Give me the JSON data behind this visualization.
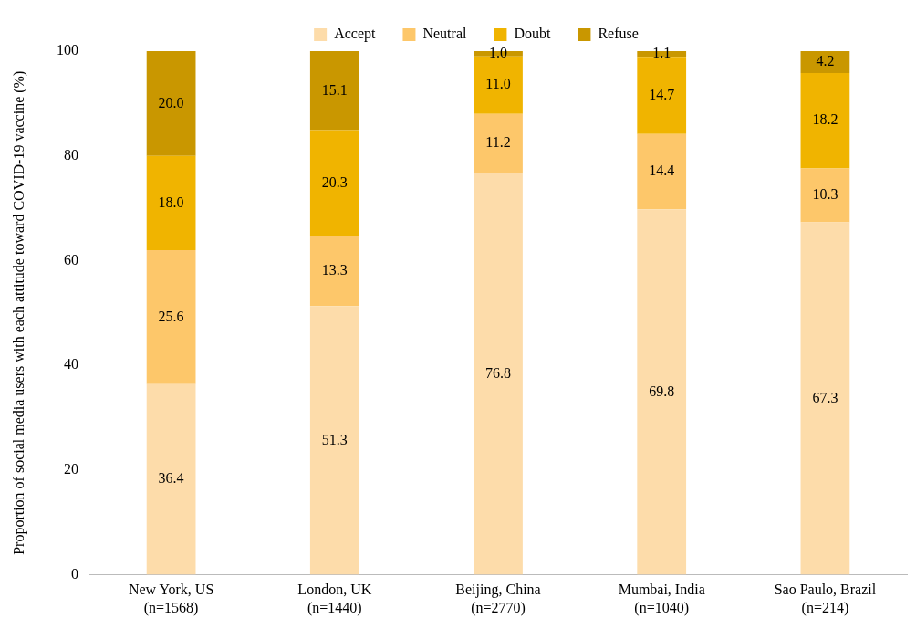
{
  "chart_data": {
    "type": "bar",
    "stacked": true,
    "ylabel": "Proportion of social media users with each attitude toward COVID-19 vaccine (%)",
    "categories": [
      "New York, US\n(n=1568)",
      "London, UK\n(n=1440)",
      "Beijing, China\n(n=2770)",
      "Mumbai, India\n(n=1040)",
      "Sao Paulo, Brazil\n(n=214)"
    ],
    "series": [
      {
        "name": "Accept",
        "color": "#fddcaa",
        "values": [
          36.4,
          51.3,
          76.8,
          69.8,
          67.3
        ],
        "value_labels": [
          "36.4",
          "51.3",
          "76.8",
          "69.8",
          "67.3"
        ]
      },
      {
        "name": "Neutral",
        "color": "#fdc76a",
        "values": [
          25.6,
          13.3,
          11.2,
          14.4,
          10.3
        ],
        "value_labels": [
          "25.6",
          "13.3",
          "11.2",
          "14.4",
          "10.3"
        ]
      },
      {
        "name": "Doubt",
        "color": "#f0b400",
        "values": [
          18.0,
          20.3,
          11.0,
          14.7,
          18.2
        ],
        "value_labels": [
          "18.0",
          "20.3",
          "11.0",
          "14.7",
          "18.2"
        ]
      },
      {
        "name": "Refuse",
        "color": "#c99700",
        "values": [
          20.0,
          15.1,
          1.0,
          1.1,
          4.2
        ],
        "value_labels": [
          "20.0",
          "15.1",
          "1.0",
          "1.1",
          "4.2"
        ]
      }
    ],
    "ylim": [
      0,
      100
    ],
    "yticks": [
      0,
      20,
      40,
      60,
      80,
      100
    ],
    "grid": false,
    "legend": "top"
  }
}
